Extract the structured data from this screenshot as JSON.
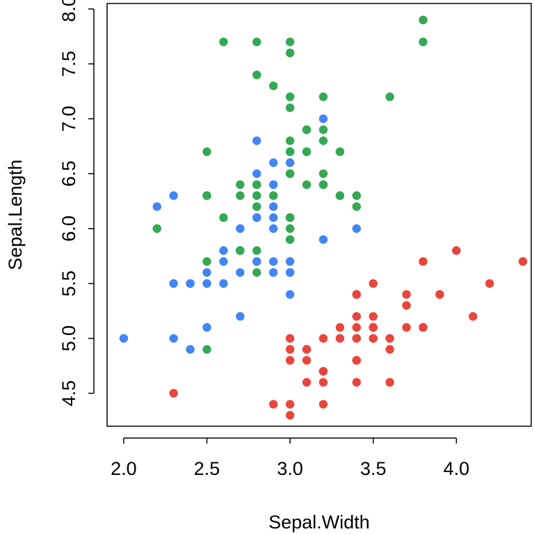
{
  "chart_data": {
    "type": "scatter",
    "title": "",
    "xlabel": "Sepal.Width",
    "ylabel": "Sepal.Length",
    "xlim": [
      1.9,
      4.45
    ],
    "ylim": [
      4.2,
      8.05
    ],
    "xticks": [
      2.0,
      2.5,
      3.0,
      3.5,
      4.0
    ],
    "xtick_labels": [
      "2.0",
      "2.5",
      "3.0",
      "3.5",
      "4.0"
    ],
    "yticks": [
      4.5,
      5.0,
      5.5,
      6.0,
      6.5,
      7.0,
      7.5,
      8.0
    ],
    "ytick_labels": [
      "4.5",
      "5.0",
      "5.5",
      "6.0",
      "6.5",
      "7.0",
      "7.5",
      "8.0"
    ],
    "grid": false,
    "legend": "none",
    "series": [
      {
        "color": "#E8453C",
        "points": [
          [
            3.5,
            5.1
          ],
          [
            3.0,
            4.9
          ],
          [
            3.2,
            4.7
          ],
          [
            3.1,
            4.6
          ],
          [
            3.6,
            5.0
          ],
          [
            3.9,
            5.4
          ],
          [
            3.4,
            4.6
          ],
          [
            3.4,
            5.0
          ],
          [
            2.9,
            4.4
          ],
          [
            3.1,
            4.9
          ],
          [
            3.7,
            5.4
          ],
          [
            3.4,
            4.8
          ],
          [
            3.0,
            4.8
          ],
          [
            3.0,
            4.3
          ],
          [
            4.0,
            5.8
          ],
          [
            4.4,
            5.7
          ],
          [
            3.9,
            5.4
          ],
          [
            3.5,
            5.1
          ],
          [
            3.8,
            5.7
          ],
          [
            3.8,
            5.1
          ],
          [
            3.4,
            5.4
          ],
          [
            3.7,
            5.1
          ],
          [
            3.6,
            4.6
          ],
          [
            3.3,
            5.1
          ],
          [
            3.4,
            4.8
          ],
          [
            3.0,
            5.0
          ],
          [
            3.4,
            5.0
          ],
          [
            3.5,
            5.2
          ],
          [
            3.4,
            5.2
          ],
          [
            3.2,
            4.7
          ],
          [
            3.1,
            4.8
          ],
          [
            3.4,
            5.4
          ],
          [
            4.1,
            5.2
          ],
          [
            4.2,
            5.5
          ],
          [
            3.1,
            4.9
          ],
          [
            3.2,
            5.0
          ],
          [
            3.5,
            5.5
          ],
          [
            3.6,
            4.9
          ],
          [
            3.0,
            4.4
          ],
          [
            3.4,
            5.1
          ],
          [
            3.5,
            5.0
          ],
          [
            2.3,
            4.5
          ],
          [
            3.2,
            4.4
          ],
          [
            3.5,
            5.0
          ],
          [
            3.8,
            5.1
          ],
          [
            3.0,
            4.8
          ],
          [
            3.8,
            5.1
          ],
          [
            3.2,
            4.6
          ],
          [
            3.7,
            5.3
          ],
          [
            3.3,
            5.0
          ]
        ]
      },
      {
        "color": "#4285F4",
        "points": [
          [
            3.2,
            7.0
          ],
          [
            3.2,
            6.4
          ],
          [
            3.1,
            6.9
          ],
          [
            2.3,
            5.5
          ],
          [
            2.8,
            6.5
          ],
          [
            2.8,
            5.7
          ],
          [
            3.3,
            6.3
          ],
          [
            2.4,
            4.9
          ],
          [
            2.9,
            6.6
          ],
          [
            2.7,
            5.2
          ],
          [
            2.0,
            5.0
          ],
          [
            3.0,
            5.9
          ],
          [
            2.2,
            6.0
          ],
          [
            2.9,
            6.1
          ],
          [
            2.9,
            5.6
          ],
          [
            3.1,
            6.7
          ],
          [
            3.0,
            5.6
          ],
          [
            2.7,
            5.8
          ],
          [
            2.2,
            6.2
          ],
          [
            2.5,
            5.6
          ],
          [
            3.2,
            5.9
          ],
          [
            2.8,
            6.1
          ],
          [
            2.5,
            6.3
          ],
          [
            2.8,
            6.1
          ],
          [
            2.9,
            6.4
          ],
          [
            3.0,
            6.6
          ],
          [
            2.8,
            6.8
          ],
          [
            3.0,
            6.7
          ],
          [
            2.9,
            6.0
          ],
          [
            2.6,
            5.7
          ],
          [
            2.4,
            5.5
          ],
          [
            2.4,
            5.5
          ],
          [
            2.7,
            5.8
          ],
          [
            2.7,
            6.0
          ],
          [
            3.0,
            5.4
          ],
          [
            3.4,
            6.0
          ],
          [
            3.1,
            6.7
          ],
          [
            2.3,
            6.3
          ],
          [
            3.0,
            5.6
          ],
          [
            2.5,
            5.5
          ],
          [
            2.6,
            5.5
          ],
          [
            3.0,
            6.1
          ],
          [
            2.6,
            5.8
          ],
          [
            2.3,
            5.0
          ],
          [
            2.7,
            5.6
          ],
          [
            3.0,
            5.7
          ],
          [
            2.9,
            5.7
          ],
          [
            2.9,
            6.2
          ],
          [
            2.5,
            5.1
          ],
          [
            2.8,
            5.7
          ]
        ]
      },
      {
        "color": "#34A853",
        "points": [
          [
            3.3,
            6.3
          ],
          [
            2.7,
            5.8
          ],
          [
            3.0,
            7.1
          ],
          [
            2.9,
            6.3
          ],
          [
            3.0,
            6.5
          ],
          [
            3.0,
            7.6
          ],
          [
            2.5,
            4.9
          ],
          [
            2.9,
            7.3
          ],
          [
            2.5,
            6.7
          ],
          [
            3.6,
            7.2
          ],
          [
            3.2,
            6.5
          ],
          [
            2.7,
            6.4
          ],
          [
            3.0,
            6.8
          ],
          [
            2.5,
            5.7
          ],
          [
            2.8,
            5.8
          ],
          [
            3.2,
            6.4
          ],
          [
            3.0,
            6.5
          ],
          [
            3.8,
            7.7
          ],
          [
            2.6,
            7.7
          ],
          [
            2.2,
            6.0
          ],
          [
            3.2,
            6.9
          ],
          [
            2.8,
            5.6
          ],
          [
            2.8,
            7.7
          ],
          [
            2.7,
            6.3
          ],
          [
            3.3,
            6.7
          ],
          [
            3.2,
            7.2
          ],
          [
            2.8,
            6.2
          ],
          [
            3.0,
            6.1
          ],
          [
            2.8,
            6.4
          ],
          [
            3.0,
            7.2
          ],
          [
            2.8,
            7.4
          ],
          [
            3.8,
            7.9
          ],
          [
            2.8,
            6.4
          ],
          [
            2.8,
            6.3
          ],
          [
            2.6,
            6.1
          ],
          [
            3.0,
            7.7
          ],
          [
            3.4,
            6.3
          ],
          [
            3.1,
            6.4
          ],
          [
            3.0,
            6.0
          ],
          [
            3.1,
            6.9
          ],
          [
            3.1,
            6.7
          ],
          [
            3.1,
            6.9
          ],
          [
            2.7,
            5.8
          ],
          [
            3.2,
            6.8
          ],
          [
            3.3,
            6.7
          ],
          [
            3.0,
            6.7
          ],
          [
            2.5,
            6.3
          ],
          [
            3.0,
            6.5
          ],
          [
            3.4,
            6.2
          ],
          [
            3.0,
            5.9
          ]
        ]
      }
    ]
  }
}
